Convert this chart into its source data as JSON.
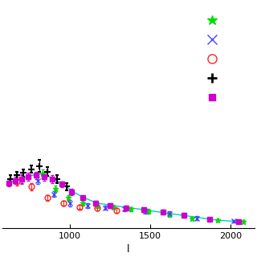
{
  "title": "",
  "xlabel": "l",
  "ylabel": "",
  "xlim": [
    580,
    2150
  ],
  "ylim": [
    0,
    3.0
  ],
  "background_color": "#ffffff",
  "acbar_x": [
    830,
    910,
    990,
    1080,
    1170,
    1270,
    1380,
    1490,
    1620,
    1760,
    1920,
    2080
  ],
  "acbar_y": [
    0.72,
    0.52,
    0.4,
    0.33,
    0.3,
    0.28,
    0.25,
    0.22,
    0.18,
    0.13,
    0.1,
    0.08
  ],
  "acbar_yerr_lo": [
    0.06,
    0.04,
    0.04,
    0.03,
    0.03,
    0.03,
    0.03,
    0.03,
    0.03,
    0.02,
    0.02,
    0.02
  ],
  "acbar_yerr_hi": [
    0.06,
    0.04,
    0.04,
    0.03,
    0.03,
    0.03,
    0.03,
    0.03,
    0.03,
    0.02,
    0.02,
    0.02
  ],
  "acbar_color": "#00dd00",
  "acbar_marker": "*",
  "cbi_x": [
    700,
    800,
    900,
    1000,
    1110,
    1220,
    1340,
    1470,
    1620,
    1790,
    2020
  ],
  "cbi_y": [
    0.65,
    0.63,
    0.45,
    0.33,
    0.3,
    0.27,
    0.25,
    0.22,
    0.19,
    0.13,
    0.09
  ],
  "cbi_yerr_lo": [
    0.06,
    0.05,
    0.04,
    0.04,
    0.03,
    0.03,
    0.03,
    0.03,
    0.03,
    0.03,
    0.02
  ],
  "cbi_yerr_hi": [
    0.06,
    0.05,
    0.04,
    0.04,
    0.03,
    0.03,
    0.03,
    0.03,
    0.03,
    0.03,
    0.02
  ],
  "cbi_color": "#4444ff",
  "cbi_marker": "x",
  "vsa_x": [
    670,
    760,
    860,
    960,
    1060,
    1170,
    1290
  ],
  "vsa_y": [
    0.62,
    0.55,
    0.4,
    0.33,
    0.28,
    0.26,
    0.23
  ],
  "vsa_yerr_lo": [
    0.06,
    0.05,
    0.04,
    0.03,
    0.03,
    0.03,
    0.03
  ],
  "vsa_yerr_hi": [
    0.06,
    0.05,
    0.04,
    0.03,
    0.03,
    0.03,
    0.03
  ],
  "vsa_color": "#ff2222",
  "vsa_marker": "o",
  "wmap_x": [
    630,
    670,
    710,
    760,
    810,
    860,
    920,
    980
  ],
  "wmap_y": [
    0.65,
    0.7,
    0.73,
    0.78,
    0.82,
    0.75,
    0.65,
    0.55
  ],
  "wmap_yerr_lo": [
    0.05,
    0.05,
    0.05,
    0.05,
    0.08,
    0.06,
    0.05,
    0.05
  ],
  "wmap_yerr_hi": [
    0.05,
    0.05,
    0.05,
    0.05,
    0.08,
    0.06,
    0.05,
    0.05
  ],
  "wmap_color": "#000000",
  "wmap_marker": "+",
  "extra_x": [
    620,
    660,
    700,
    740,
    790,
    840,
    890,
    950,
    1010,
    1080,
    1160,
    1250,
    1350,
    1460,
    1580,
    1710,
    1870,
    2050
  ],
  "extra_y": [
    0.6,
    0.63,
    0.65,
    0.68,
    0.7,
    0.68,
    0.65,
    0.58,
    0.48,
    0.4,
    0.33,
    0.3,
    0.27,
    0.24,
    0.21,
    0.17,
    0.12,
    0.08
  ],
  "extra_yerr_lo": [
    0.05,
    0.05,
    0.05,
    0.05,
    0.05,
    0.05,
    0.05,
    0.04,
    0.04,
    0.03,
    0.03,
    0.03,
    0.03,
    0.03,
    0.03,
    0.03,
    0.02,
    0.02
  ],
  "extra_yerr_hi": [
    0.05,
    0.05,
    0.05,
    0.05,
    0.05,
    0.05,
    0.05,
    0.04,
    0.04,
    0.03,
    0.03,
    0.03,
    0.03,
    0.03,
    0.03,
    0.03,
    0.02,
    0.02
  ],
  "extra_color": "#cc00cc",
  "extra_marker": "s",
  "curve_x": [
    620,
    660,
    700,
    750,
    800,
    850,
    900,
    960,
    1020,
    1090,
    1170,
    1260,
    1360,
    1470,
    1590,
    1730,
    1890,
    2060
  ],
  "curve_y": [
    0.6,
    0.63,
    0.66,
    0.69,
    0.72,
    0.7,
    0.65,
    0.58,
    0.48,
    0.4,
    0.33,
    0.3,
    0.27,
    0.24,
    0.2,
    0.16,
    0.11,
    0.08
  ],
  "curve_color": "#00cccc",
  "legend_markers": [
    "*",
    "x",
    "o",
    "+",
    "s"
  ],
  "legend_colors": [
    "#00dd00",
    "#4444ff",
    "#ff2222",
    "#000000",
    "#cc00cc"
  ],
  "legend_markersize": [
    9,
    8,
    8,
    9,
    6
  ]
}
